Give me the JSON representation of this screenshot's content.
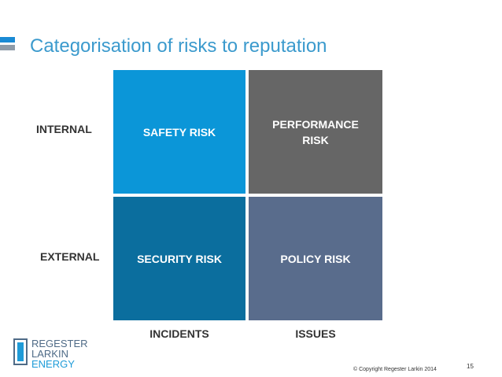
{
  "slide": {
    "title": "Categorisation of risks to reputation",
    "page_number": "15",
    "copyright": "© Copyright Regester Larkin 2014"
  },
  "matrix": {
    "row_labels": {
      "internal": "INTERNAL",
      "external": "EXTERNAL"
    },
    "column_labels": {
      "incidents": "INCIDENTS",
      "issues": "ISSUES"
    },
    "cells": {
      "safety": {
        "line1": "SAFETY RISK",
        "line2": ""
      },
      "performance": {
        "line1": "PERFORMANCE",
        "line2": "RISK"
      },
      "security": {
        "line1": "SECURITY RISK",
        "line2": ""
      },
      "policy": {
        "line1": "POLICY RISK",
        "line2": ""
      }
    }
  },
  "logo": {
    "line1": "REGESTER",
    "line2": "LARKIN",
    "line3": "ENERGY",
    "icon": "logo-mark-icon"
  },
  "colors": {
    "title": "#3B9ACD",
    "accent_top": "#1A8AD4",
    "accent_bottom": "#8E9BA8",
    "safety": "#0B96D8",
    "performance": "#666666",
    "security": "#0B6E9E",
    "policy": "#596C8C",
    "logo_main": "#4F6B87",
    "logo_energy": "#1E9BD8"
  }
}
